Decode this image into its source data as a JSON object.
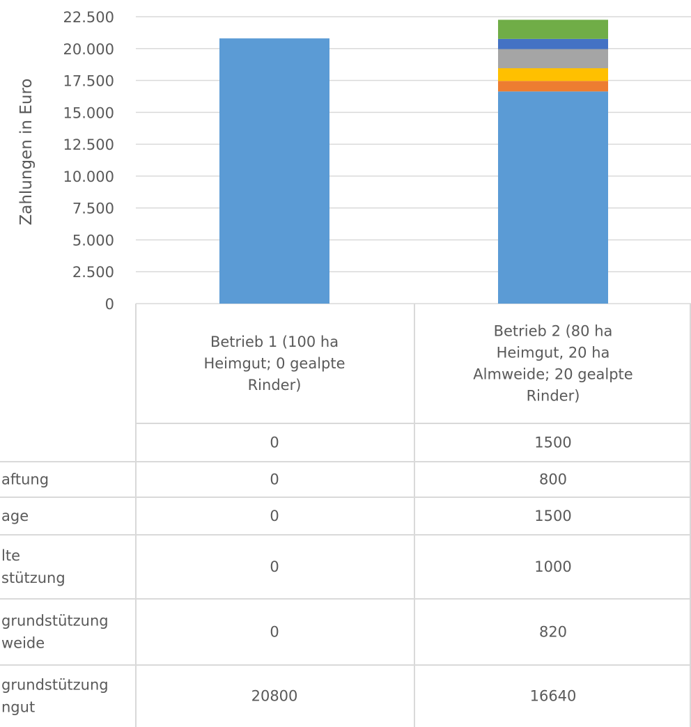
{
  "chart_data": {
    "type": "bar",
    "stacked": true,
    "ylabel": "Zahlungen in Euro",
    "ylim": [
      0,
      22500
    ],
    "yticks": [
      "0",
      "2.500",
      "5.000",
      "7.500",
      "10.000",
      "12.500",
      "15.000",
      "17.500",
      "20.000",
      "22.500"
    ],
    "grid": true,
    "categories": [
      [
        "Betrieb 1 (100 ha",
        "Heimgut; 0 gealpte",
        "Rinder)"
      ],
      [
        "Betrieb 2 (80 ha",
        "Heimgut, 20 ha",
        "Almweide; 20 gealpte",
        "Rinder)"
      ]
    ],
    "series": [
      {
        "name": [
          "grundstützung",
          "ngut"
        ],
        "color": "#5B9BD5",
        "values": [
          20800,
          16640
        ]
      },
      {
        "name": [
          "grundstützung",
          "weide"
        ],
        "color": "#ED7D31",
        "values": [
          0,
          820
        ]
      },
      {
        "name": [
          "lte",
          "stützung"
        ],
        "color": "#FFC000",
        "values": [
          0,
          1000
        ]
      },
      {
        "name": [
          "age"
        ],
        "color": "#A5A5A5",
        "values": [
          0,
          1500
        ]
      },
      {
        "name": [
          "aftung"
        ],
        "color": "#4472C4",
        "values": [
          0,
          800
        ]
      },
      {
        "name": [
          ""
        ],
        "color": "#70AD47",
        "values": [
          0,
          1500
        ]
      }
    ],
    "table_order": [
      5,
      4,
      3,
      2,
      1,
      0
    ]
  }
}
